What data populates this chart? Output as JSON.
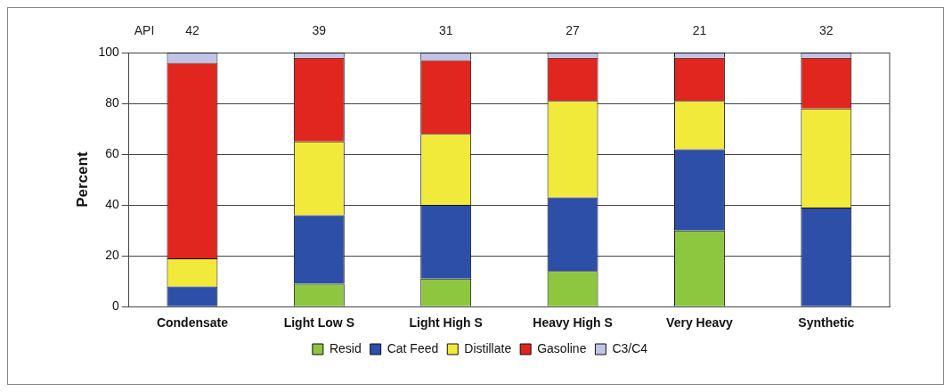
{
  "chart_data": {
    "type": "bar",
    "stacked": true,
    "ylabel": "Percent",
    "categories": [
      "Condensate",
      "Light Low S",
      "Light High S",
      "Heavy High S",
      "Very Heavy",
      "Synthetic"
    ],
    "series": [
      {
        "name": "Resid",
        "color": "#8dc63f",
        "values": [
          0,
          9,
          11,
          14,
          30,
          0
        ]
      },
      {
        "name": "Cat Feed",
        "color": "#2e4fa8",
        "values": [
          8,
          27,
          29,
          29,
          32,
          39
        ]
      },
      {
        "name": "Distillate",
        "color": "#f2ea3a",
        "values": [
          11,
          29,
          28,
          38,
          19,
          39
        ]
      },
      {
        "name": "Gasoline",
        "color": "#e0261f",
        "values": [
          77,
          33,
          29,
          17,
          17,
          20
        ]
      },
      {
        "name": "C3/C4",
        "color": "#c0c4e6",
        "values": [
          4,
          2,
          3,
          2,
          2,
          2
        ]
      }
    ],
    "ylim": [
      0,
      100
    ],
    "yticks": [
      0,
      20,
      40,
      60,
      80,
      100
    ],
    "grid": "y",
    "legend": "bottom",
    "annotations": [
      "API",
      "42",
      "39",
      "31",
      "27",
      "21",
      "32"
    ]
  }
}
